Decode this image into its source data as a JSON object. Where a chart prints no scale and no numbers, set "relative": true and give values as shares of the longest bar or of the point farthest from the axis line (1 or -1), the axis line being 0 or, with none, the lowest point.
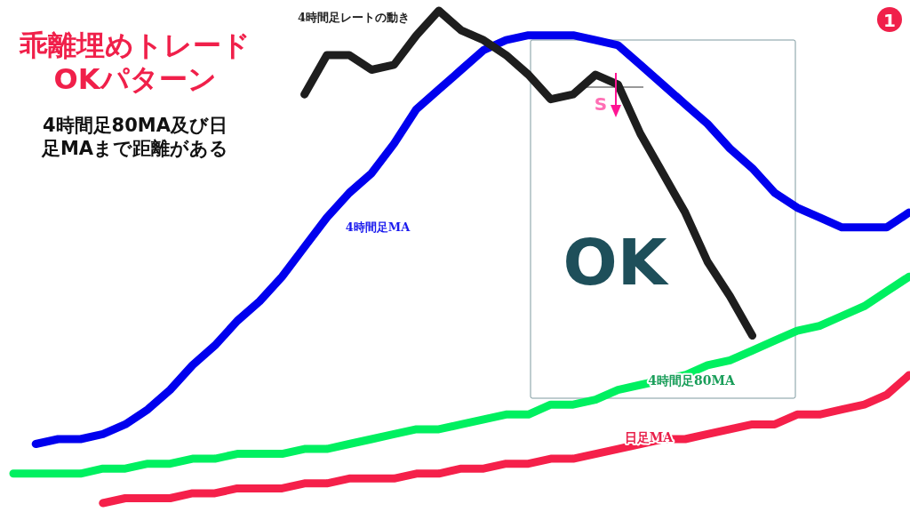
{
  "chart_data": {
    "type": "line",
    "relative": true,
    "title": "乖離埋めトレードOKパターン",
    "subtitle": "4時間足80MA及び日足MAまで距離がある",
    "annotations": [
      "OK",
      "S",
      "1"
    ],
    "line_style": "solid",
    "categories": [
      null,
      null,
      null,
      null,
      null,
      null,
      null,
      null,
      null,
      null,
      null,
      null,
      null,
      null,
      null,
      null,
      null,
      null,
      null,
      null,
      null,
      null,
      null,
      null,
      null,
      null,
      null,
      null,
      null,
      null,
      null,
      null,
      null,
      null,
      null,
      null,
      null,
      null,
      null,
      null,
      null
    ],
    "series": [
      {
        "name": "4時間足レートの動き",
        "color": "#1e1e1e",
        "values": [
          null,
          null,
          null,
          null,
          null,
          null,
          null,
          null,
          null,
          null,
          null,
          null,
          null,
          0.83,
          0.91,
          0.91,
          0.88,
          0.89,
          0.95,
          1.0,
          0.96,
          0.94,
          0.91,
          0.87,
          0.82,
          0.83,
          0.87,
          0.85,
          0.75,
          0.67,
          0.59,
          0.49,
          0.42,
          0.34,
          null,
          null,
          null,
          null,
          null,
          null,
          null
        ]
      },
      {
        "name": "4時間足MA",
        "color": "#0000ee",
        "values": [
          null,
          0.12,
          0.13,
          0.13,
          0.14,
          0.16,
          0.19,
          0.23,
          0.28,
          0.32,
          0.37,
          0.41,
          0.46,
          0.52,
          0.58,
          0.63,
          0.67,
          0.73,
          0.8,
          0.84,
          0.88,
          0.92,
          0.94,
          0.95,
          0.95,
          0.95,
          0.94,
          0.93,
          0.89,
          0.85,
          0.81,
          0.77,
          0.72,
          0.68,
          0.63,
          0.6,
          0.58,
          0.56,
          0.56,
          0.56,
          0.59
        ]
      },
      {
        "name": "4時間足80MA",
        "color": "#00f060",
        "values": [
          0.06,
          0.06,
          0.06,
          0.06,
          0.07,
          0.07,
          0.08,
          0.08,
          0.09,
          0.09,
          0.1,
          0.1,
          0.1,
          0.11,
          0.11,
          0.12,
          0.13,
          0.14,
          0.15,
          0.15,
          0.16,
          0.17,
          0.18,
          0.18,
          0.2,
          0.2,
          0.21,
          0.23,
          0.24,
          0.25,
          0.26,
          0.28,
          0.29,
          0.31,
          0.33,
          0.35,
          0.36,
          0.38,
          0.4,
          0.43,
          0.46
        ]
      },
      {
        "name": "日足MA",
        "color": "#f5204a",
        "values": [
          null,
          null,
          null,
          null,
          0.0,
          0.01,
          0.01,
          0.01,
          0.02,
          0.02,
          0.03,
          0.03,
          0.03,
          0.04,
          0.04,
          0.05,
          0.05,
          0.05,
          0.06,
          0.06,
          0.07,
          0.07,
          0.08,
          0.08,
          0.09,
          0.09,
          0.1,
          0.11,
          0.12,
          0.13,
          0.13,
          0.14,
          0.15,
          0.16,
          0.16,
          0.18,
          0.18,
          0.19,
          0.2,
          0.22,
          0.26
        ]
      }
    ]
  }
}
